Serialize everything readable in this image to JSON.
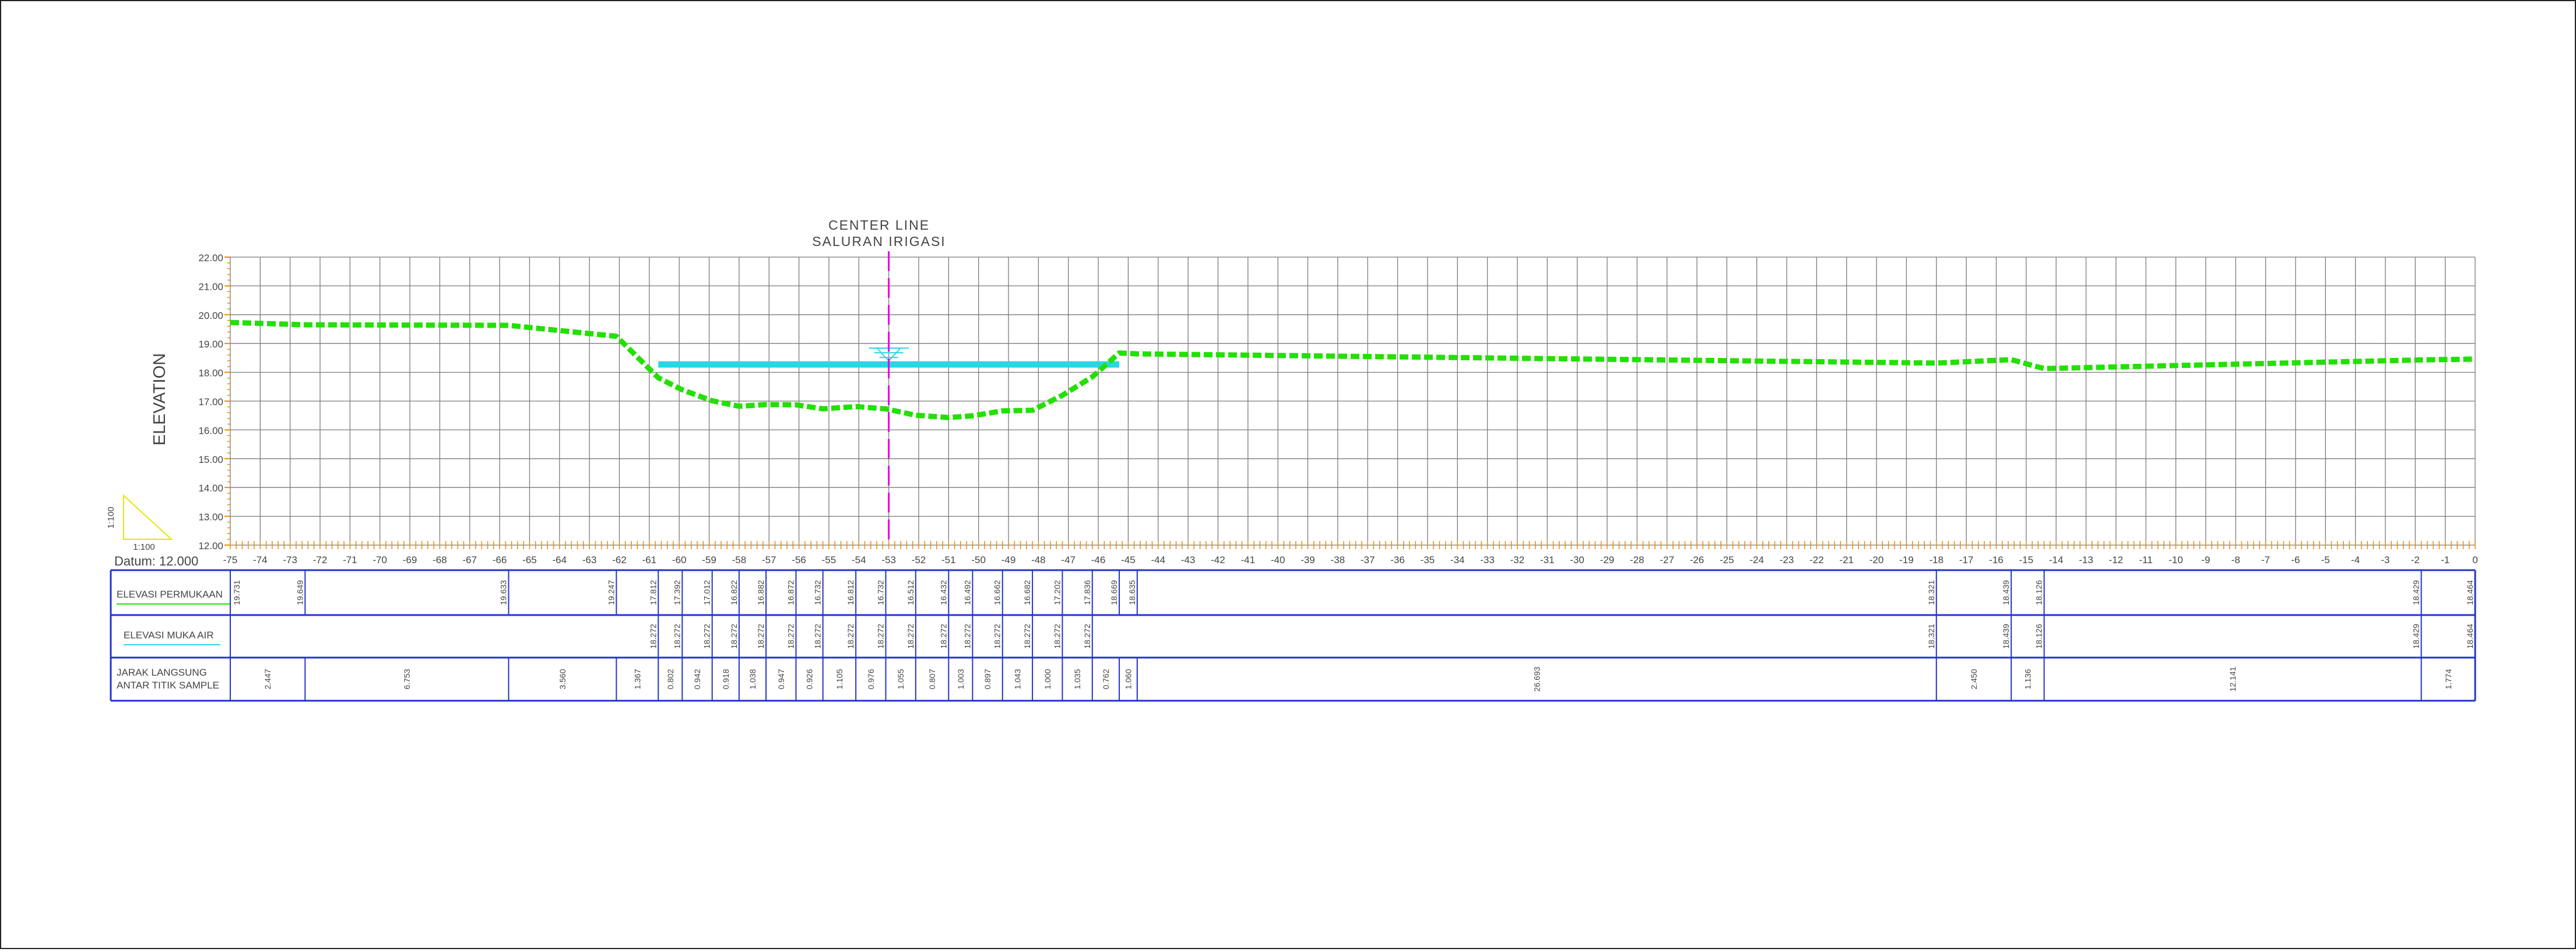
{
  "title": {
    "line1": "CENTER LINE",
    "line2": "SALURAN IRIGASI"
  },
  "axis": {
    "y_label": "ELEVATION",
    "datum": "Datum: 12.000",
    "scale_v": "1:100",
    "scale_h": "1:100"
  },
  "colors": {
    "ground": "#22e000",
    "water": "#29d6e6",
    "centerline": "#e600e6",
    "grid": "#7a7a7a",
    "table_border": "#2233cc",
    "tick_orange": "#f08a00",
    "scale_triangle": "#e6e600"
  },
  "rows": {
    "surface_label": "ELEVASI PERMUKAAN",
    "water_label": "ELEVASI MUKA AIR",
    "distance_label_1": "JARAK LANGSUNG",
    "distance_label_2": "ANTAR TITIK SAMPLE"
  },
  "chart_data": {
    "type": "line",
    "xlabel": "",
    "ylabel": "ELEVATION",
    "xlim": [
      -75,
      0
    ],
    "ylim": [
      12,
      22
    ],
    "y_ticks": [
      "12.00",
      "13.00",
      "14.00",
      "15.00",
      "16.00",
      "17.00",
      "18.00",
      "19.00",
      "20.00",
      "21.00",
      "22.00"
    ],
    "x_ticks": [
      "-75",
      "-74",
      "-73",
      "-72",
      "-71",
      "-70",
      "-69",
      "-68",
      "-67",
      "-66",
      "-65",
      "-64",
      "-63",
      "-62",
      "-61",
      "-60",
      "-59",
      "-58",
      "-57",
      "-56",
      "-55",
      "-54",
      "-53",
      "-52",
      "-51",
      "-50",
      "-49",
      "-48",
      "-47",
      "-46",
      "-45",
      "-44",
      "-43",
      "-42",
      "-41",
      "-40",
      "-39",
      "-38",
      "-37",
      "-36",
      "-35",
      "-34",
      "-33",
      "-32",
      "-31",
      "-30",
      "-29",
      "-28",
      "-27",
      "-26",
      "-25",
      "-24",
      "-23",
      "-22",
      "-21",
      "-20",
      "-19",
      "-18",
      "-17",
      "-16",
      "-15",
      "-14",
      "-13",
      "-12",
      "-11",
      "-10",
      "-9",
      "-8",
      "-7",
      "-6",
      "-5",
      "-4",
      "-3",
      "-2",
      "-1",
      "0"
    ],
    "centerline_x": -53,
    "ground": {
      "x": [
        -75,
        -72.5,
        -65.7,
        -62.1,
        -60.7,
        -59.9,
        -58.9,
        -58.0,
        -57.1,
        -56.1,
        -55.2,
        -54.1,
        -53.1,
        -52.1,
        -51.0,
        -50.2,
        -49.2,
        -48.2,
        -47.2,
        -46.2,
        -45.3,
        -44.7,
        -18.0,
        -15.5,
        -14.4,
        -1.8,
        0
      ],
      "y": [
        19.73,
        19.65,
        19.63,
        19.25,
        17.81,
        17.39,
        17.01,
        16.82,
        16.88,
        16.87,
        16.73,
        16.81,
        16.73,
        16.51,
        16.43,
        16.49,
        16.66,
        16.68,
        17.2,
        17.84,
        18.67,
        18.64,
        18.32,
        18.44,
        18.13,
        18.43,
        18.46
      ]
    },
    "water": {
      "x": [
        -60.7,
        -45.3
      ],
      "y": [
        18.272,
        18.272
      ]
    },
    "stations": {
      "x": [
        -75,
        -72.5,
        -65.7,
        -62.1,
        -60.7,
        -59.9,
        -58.9,
        -58.0,
        -57.1,
        -56.1,
        -55.2,
        -54.1,
        -53.1,
        -52.1,
        -51.0,
        -50.2,
        -49.2,
        -48.2,
        -47.2,
        -46.2,
        -45.3,
        -44.7,
        -18.0,
        -15.5,
        -14.4,
        -1.8,
        0
      ],
      "surface": [
        "19.731",
        "19.649",
        "19.633",
        "19.247",
        "17.812",
        "17.392",
        "17.012",
        "16.822",
        "16.882",
        "16.872",
        "16.732",
        "16.812",
        "16.732",
        "16.512",
        "16.432",
        "16.492",
        "16.662",
        "16.682",
        "17.202",
        "17.836",
        "18.669",
        "18.635",
        "18.321",
        "18.439",
        "18.126",
        "18.429",
        "18.464"
      ],
      "water": [
        "",
        "",
        "",
        "",
        "18.272",
        "18.272",
        "18.272",
        "18.272",
        "18.272",
        "18.272",
        "18.272",
        "18.272",
        "18.272",
        "18.272",
        "18.272",
        "18.272",
        "18.272",
        "18.272",
        "18.272",
        "18.272",
        "",
        "",
        "18.321",
        "18.439",
        "18.126",
        "18.429",
        "18.464"
      ]
    },
    "distances": [
      "2.447",
      "6.753",
      "3.560",
      "1.367",
      "0.802",
      "0.942",
      "0.918",
      "1.038",
      "0.947",
      "0.926",
      "1.105",
      "0.976",
      "1.055",
      "0.807",
      "1.003",
      "0.897",
      "1.043",
      "1.000",
      "1.035",
      "0.762",
      "1.060",
      "26.693",
      "2.450",
      "1.136",
      "12.141",
      "1.774"
    ]
  }
}
